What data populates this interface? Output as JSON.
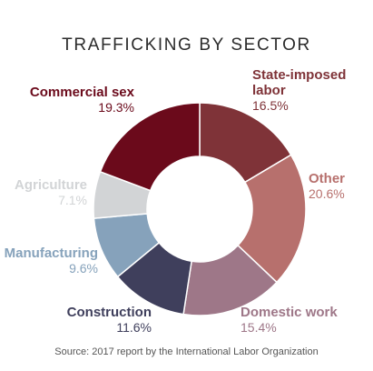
{
  "title": "TRAFFICKING BY SECTOR",
  "source": "Source: 2017 report by the International Labor Organization",
  "chart_data": {
    "type": "pie",
    "title": "TRAFFICKING BY SECTOR",
    "donut": true,
    "slices": [
      {
        "label": "State-imposed labor",
        "value": 16.5,
        "pct_text": "16.5%",
        "color": "#7f3338"
      },
      {
        "label": "Other",
        "value": 20.6,
        "pct_text": "20.6%",
        "color": "#b7706d"
      },
      {
        "label": "Domestic work",
        "value": 15.4,
        "pct_text": "15.4%",
        "color": "#9e7788"
      },
      {
        "label": "Construction",
        "value": 11.6,
        "pct_text": "11.6%",
        "color": "#3f3f5c"
      },
      {
        "label": "Manufacturing",
        "value": 9.6,
        "pct_text": "9.6%",
        "color": "#86a2bb"
      },
      {
        "label": "Agriculture",
        "value": 7.1,
        "pct_text": "7.1%",
        "color": "#d2d4d6"
      },
      {
        "label": "Commercial sex",
        "value": 19.3,
        "pct_text": "19.3%",
        "color": "#6b0a1b"
      }
    ]
  }
}
